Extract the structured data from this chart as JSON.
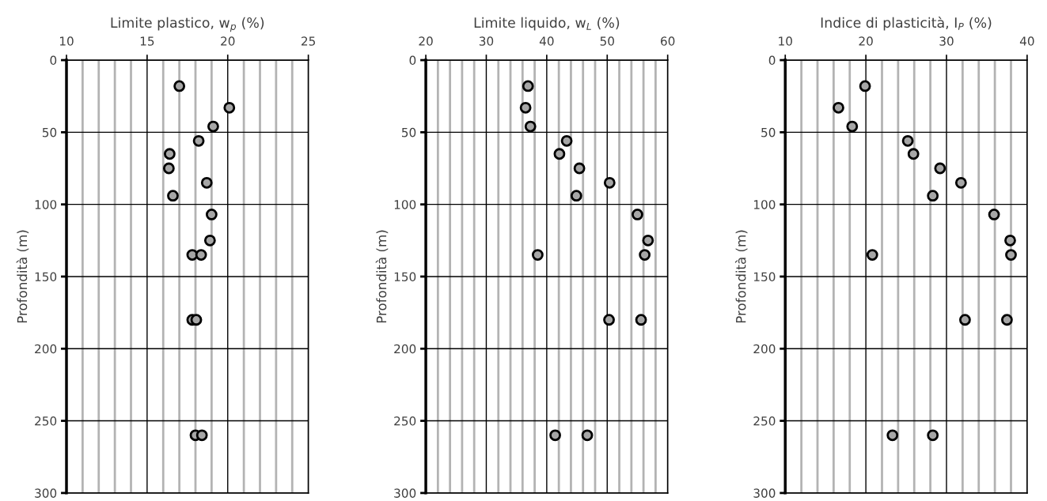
{
  "chart_data": [
    {
      "type": "scatter",
      "xlabel": "Limite plastico, w$_{p}$ (%)",
      "ylabel": "Profondità (m)",
      "marker": "circle",
      "grid": true,
      "xlim": [
        10,
        25
      ],
      "xticks": [
        10,
        {
          "value": 11,
          "label": null
        },
        {
          "value": 12,
          "label": null
        },
        {
          "value": 13,
          "label": null
        },
        {
          "value": 14,
          "label": null
        },
        15,
        {
          "value": 16,
          "label": null
        },
        {
          "value": 17,
          "label": null
        },
        {
          "value": 18,
          "label": null
        },
        {
          "value": 19,
          "label": null
        },
        20,
        {
          "value": 21,
          "label": null
        },
        {
          "value": 22,
          "label": null
        },
        {
          "value": 23,
          "label": null
        },
        {
          "value": 24,
          "label": null
        },
        25
      ],
      "ylim": [
        300,
        0
      ],
      "yticks": [
        0,
        50,
        100,
        150,
        200,
        250,
        300
      ],
      "series": [
        {
          "color": "#a6a6a6",
          "x": [
            17.0,
            20.1,
            19.1,
            18.2,
            16.4,
            16.35,
            18.7,
            16.6,
            19.0,
            18.9,
            17.8,
            18.35,
            17.8,
            18.05,
            18.0,
            18.4
          ],
          "values": [
            18,
            33,
            46,
            56,
            65,
            75,
            85,
            94,
            107,
            125,
            135,
            135,
            180,
            180,
            260,
            260
          ]
        }
      ]
    },
    {
      "type": "scatter",
      "xlabel": "Limite liquido, w$_{L}$ (%)",
      "ylabel": "Profondità (m)",
      "marker": "circle",
      "grid": true,
      "xlim": [
        20,
        60
      ],
      "xticks": [
        20,
        {
          "value": 22,
          "label": null
        },
        {
          "value": 24,
          "label": null
        },
        {
          "value": 26,
          "label": null
        },
        {
          "value": 28,
          "label": null
        },
        30,
        {
          "value": 32,
          "label": null
        },
        {
          "value": 34,
          "label": null
        },
        {
          "value": 36,
          "label": null
        },
        {
          "value": 38,
          "label": null
        },
        40,
        {
          "value": 42,
          "label": null
        },
        {
          "value": 44,
          "label": null
        },
        {
          "value": 46,
          "label": null
        },
        {
          "value": 48,
          "label": null
        },
        50,
        {
          "value": 52,
          "label": null
        },
        {
          "value": 54,
          "label": null
        },
        {
          "value": 56,
          "label": null
        },
        {
          "value": 58,
          "label": null
        },
        60
      ],
      "ylim": [
        300,
        0
      ],
      "yticks": [
        0,
        50,
        100,
        150,
        200,
        250,
        300
      ],
      "series": [
        {
          "color": "#a6a6a6",
          "x": [
            36.9,
            36.5,
            37.3,
            43.3,
            42.1,
            45.4,
            50.4,
            44.9,
            55.0,
            56.75,
            56.2,
            38.5,
            50.3,
            55.6,
            41.4,
            46.7
          ],
          "values": [
            18,
            33,
            46,
            56,
            65,
            75,
            85,
            94,
            107,
            125,
            135,
            135,
            180,
            180,
            260,
            260
          ]
        }
      ]
    },
    {
      "type": "scatter",
      "xlabel": "Indice di plasticità, I$_{P}$ (%)",
      "ylabel": "Profondità (m)",
      "marker": "circle",
      "grid": true,
      "xlim": [
        10,
        40
      ],
      "xticks": [
        10,
        {
          "value": 12,
          "label": null
        },
        {
          "value": 14,
          "label": null
        },
        {
          "value": 16,
          "label": null
        },
        {
          "value": 18,
          "label": null
        },
        20,
        {
          "value": 22,
          "label": null
        },
        {
          "value": 24,
          "label": null
        },
        {
          "value": 26,
          "label": null
        },
        {
          "value": 28,
          "label": null
        },
        30,
        {
          "value": 32,
          "label": null
        },
        {
          "value": 34,
          "label": null
        },
        {
          "value": 36,
          "label": null
        },
        {
          "value": 38,
          "label": null
        },
        40
      ],
      "ylim": [
        300,
        0
      ],
      "yticks": [
        0,
        50,
        100,
        150,
        200,
        250,
        300
      ],
      "series": [
        {
          "color": "#a6a6a6",
          "x": [
            19.9,
            16.6,
            18.3,
            25.2,
            25.9,
            29.2,
            31.8,
            28.3,
            35.9,
            37.9,
            38.0,
            20.8,
            32.3,
            37.5,
            23.3,
            28.3
          ],
          "values": [
            18,
            33,
            46,
            56,
            65,
            75,
            85,
            94,
            107,
            125,
            135,
            135,
            180,
            180,
            260,
            260
          ]
        }
      ]
    }
  ]
}
